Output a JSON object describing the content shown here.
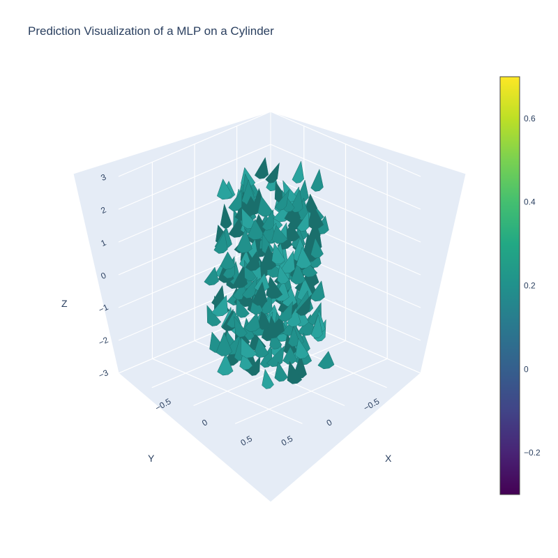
{
  "chart_data": {
    "type": "cone",
    "title": "Prediction Visualization of a MLP on a Cylinder",
    "axes": {
      "x": {
        "label": "X",
        "ticks": [
          "−0.5",
          "0",
          "0.5"
        ],
        "range": [
          -0.9,
          0.9
        ]
      },
      "y": {
        "label": "Y",
        "ticks": [
          "−0.5",
          "0",
          "0.5"
        ],
        "range": [
          -0.9,
          0.9
        ]
      },
      "z": {
        "label": "Z",
        "ticks": [
          "−3",
          "−2",
          "−1",
          "0",
          "1",
          "2",
          "3"
        ],
        "range": [
          -3,
          3
        ]
      }
    },
    "grid": true,
    "colorscale": "Viridis",
    "colorbar": {
      "range": [
        -0.3,
        0.7
      ],
      "ticks": [
        "−0.2",
        "0",
        "0.2",
        "0.4",
        "0.6"
      ],
      "tick_values": [
        -0.2,
        0,
        0.2,
        0.4,
        0.6
      ]
    },
    "cylinder": {
      "radius": 0.5,
      "z_range": [
        -2.5,
        2.5
      ]
    },
    "cone_value": 0.2,
    "colors": {
      "cone": "#21918c",
      "cone_dark": "#1a6f6c",
      "cone_light": "#2aa39e",
      "background": "#e5ecf6",
      "grid": "#ffffff",
      "text": "#2a3f5f"
    }
  }
}
